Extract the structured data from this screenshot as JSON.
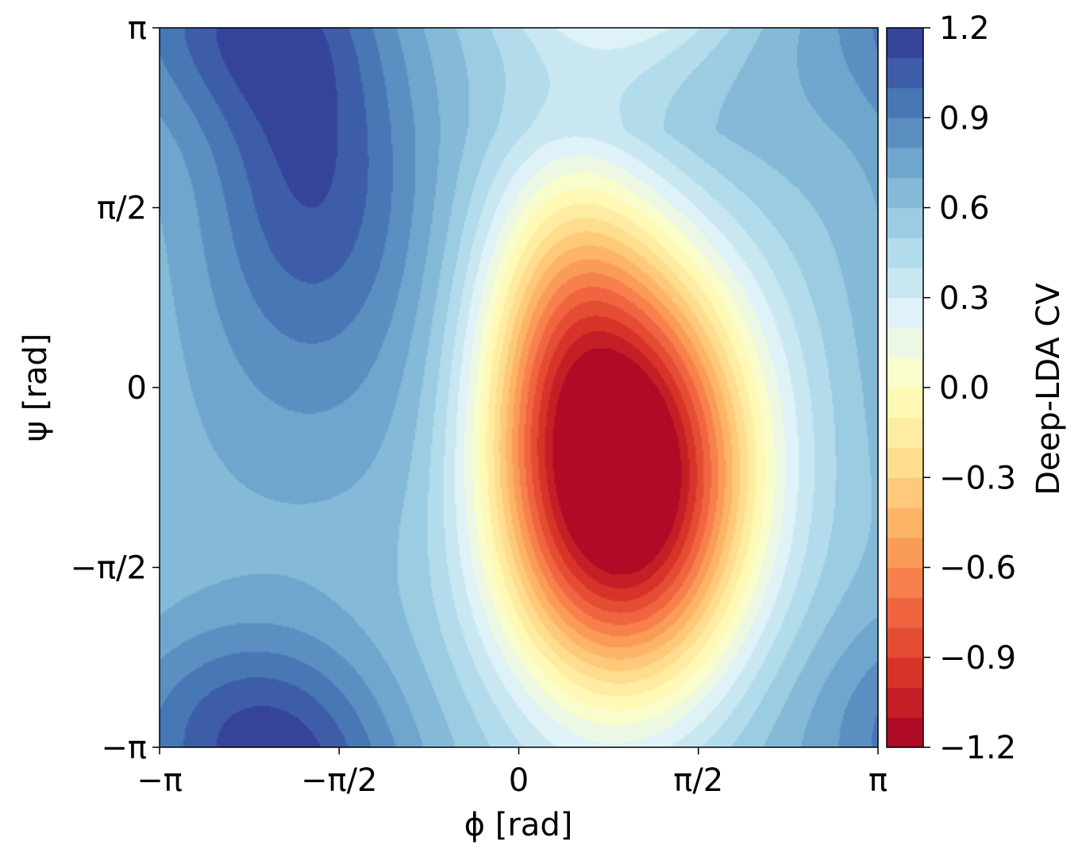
{
  "chart_data": {
    "type": "heatmap",
    "style": "filled-contour",
    "xlabel": "ϕ [rad]",
    "ylabel": "ψ [rad]",
    "xlim": [
      "-π",
      "π"
    ],
    "ylim": [
      "-π",
      "π"
    ],
    "x_ticks": [
      {
        "value": -3.14159,
        "label": "−π"
      },
      {
        "value": -1.5708,
        "label": "−π/2"
      },
      {
        "value": 0,
        "label": "0"
      },
      {
        "value": 1.5708,
        "label": "π/2"
      },
      {
        "value": 3.14159,
        "label": "π"
      }
    ],
    "y_ticks": [
      {
        "value": -3.14159,
        "label": "−π"
      },
      {
        "value": -1.5708,
        "label": "−π/2"
      },
      {
        "value": 0,
        "label": "0"
      },
      {
        "value": 1.5708,
        "label": "π/2"
      },
      {
        "value": 3.14159,
        "label": "π"
      }
    ],
    "colorbar": {
      "label": "Deep-LDA CV",
      "range": [
        -1.2,
        1.2
      ],
      "colormap": "RdYlBu",
      "levels": 24,
      "tick_values": [
        -1.2,
        -0.9,
        -0.6,
        -0.3,
        0.0,
        0.3,
        0.6,
        0.9,
        1.2
      ],
      "tick_labels": [
        "−1.2",
        "−0.9",
        "−0.6",
        "−0.3",
        "0.0",
        "0.3",
        "0.6",
        "0.9",
        "1.2"
      ]
    },
    "features": [
      {
        "description": "minimum",
        "phi": 1.0,
        "psi": -0.9,
        "value": -1.2
      },
      {
        "description": "maximum",
        "phi": -1.8,
        "psi": 2.0,
        "value": 1.2
      },
      {
        "description": "secondary high",
        "phi": -2.4,
        "psi": -3.0,
        "value": 1.1
      }
    ],
    "colors": {
      "low": "#a50026",
      "mid": "#ffffbf",
      "high": "#313695"
    }
  }
}
